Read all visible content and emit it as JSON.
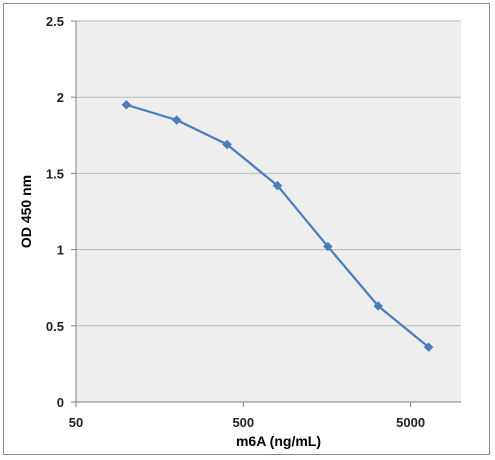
{
  "chart_data": {
    "type": "line",
    "title": "",
    "xlabel": "m6A (ng/mL)",
    "ylabel": "OD 450 nm",
    "x_scale": "log",
    "xlim": [
      50,
      10000
    ],
    "ylim": [
      0,
      2.5
    ],
    "x_ticks": [
      50,
      500,
      5000
    ],
    "x_tick_labels": [
      "50",
      "500",
      "5000"
    ],
    "y_ticks": [
      0,
      0.5,
      1,
      1.5,
      2,
      2.5
    ],
    "y_tick_labels": [
      "0",
      "0.5",
      "1",
      "1.5",
      "2",
      "2.5"
    ],
    "grid": "horizontal",
    "legend": "none",
    "series": [
      {
        "color": "#4a7ebb",
        "marker": "diamond",
        "x": [
          100,
          200,
          400,
          800,
          1600,
          3200,
          6400
        ],
        "y": [
          1.95,
          1.85,
          1.69,
          1.42,
          1.02,
          0.63,
          0.36
        ]
      }
    ],
    "colors": {
      "plot_background": "#eeeeee",
      "gridline": "#b8b8b8",
      "axis": "#7f7f7f"
    }
  }
}
